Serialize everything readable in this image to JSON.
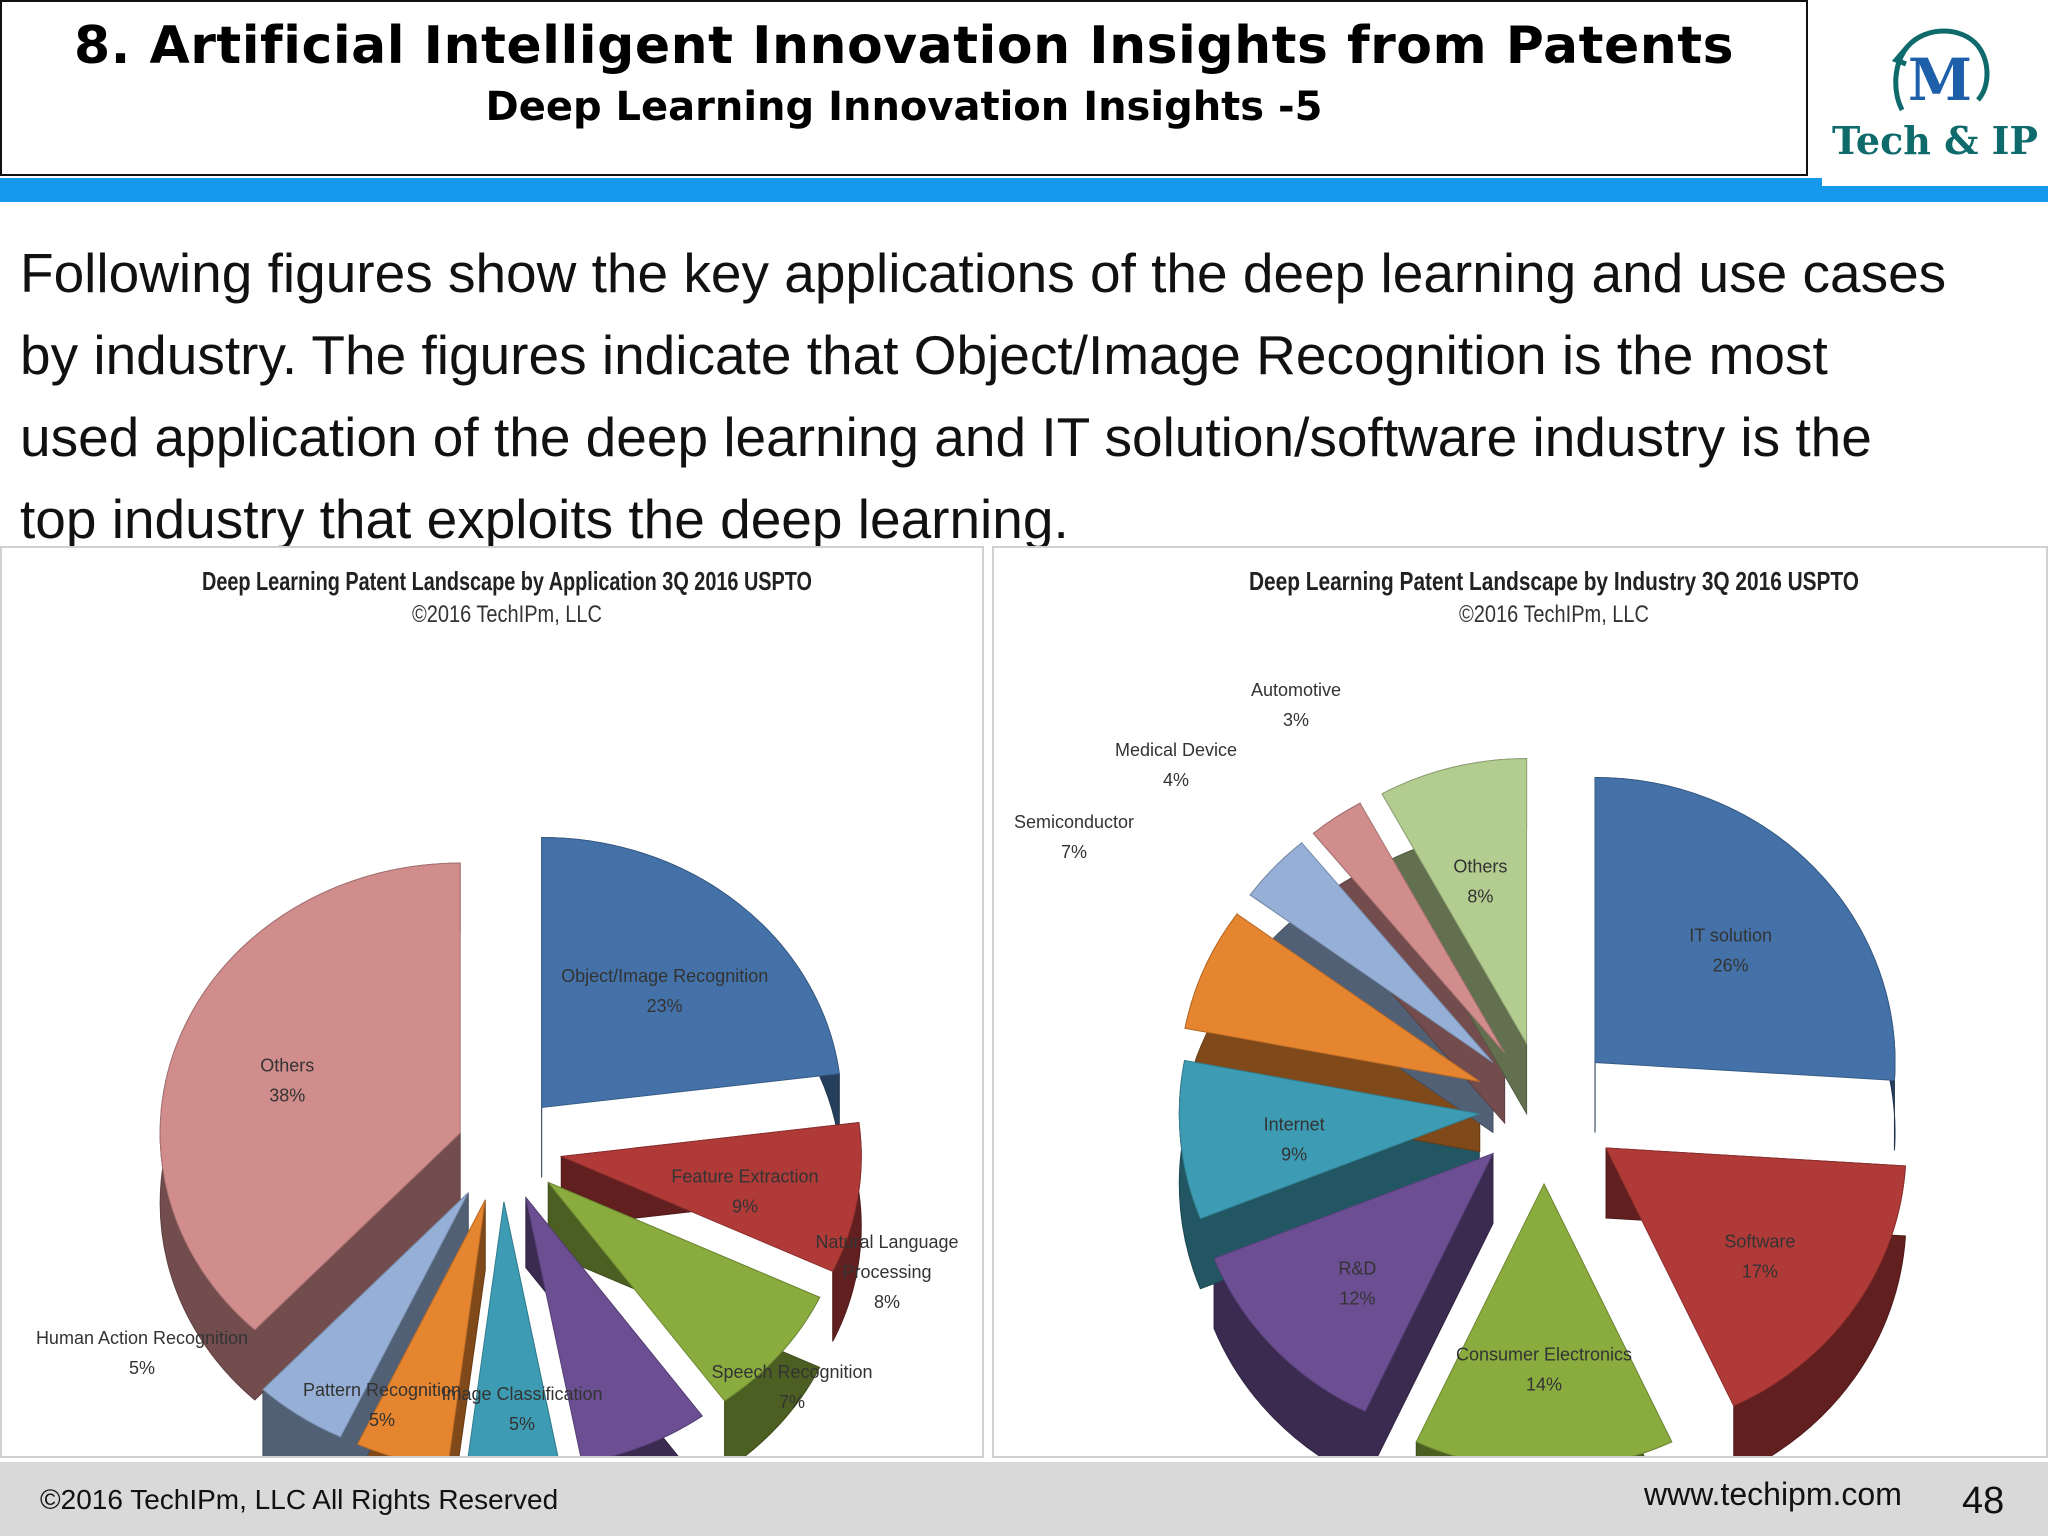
{
  "header": {
    "title": "8. Artificial Intelligent Innovation Insights from Patents",
    "subtitle": "Deep Learning Innovation Insights -5"
  },
  "logo": {
    "mark": "M",
    "text": "Tech & IP"
  },
  "intro": {
    "lines": [
      "Following figures show the key applications of the deep learning and use cases",
      "by industry. The figures indicate that Object/Image Recognition is the most",
      "used application of the deep learning and IT solution/software industry  is the",
      "top industry that exploits the deep learning."
    ]
  },
  "footer": {
    "copyright": "©2016 TechIPm, LLC All Rights Reserved",
    "url": "www.techipm.com",
    "page": "48"
  },
  "chart_data": [
    {
      "type": "pie",
      "title": "Deep Learning Patent Landscape by Application 3Q 2016 USPTO",
      "subtitle": "©2016 TechIPm, LLC",
      "slices": [
        {
          "label": "Object/Image Recognition",
          "value": 23,
          "text": "23%",
          "color": "#4472a8"
        },
        {
          "label": "Feature Extraction",
          "value": 9,
          "text": "9%",
          "color": "#b03a38"
        },
        {
          "label": "Natural Language Processing",
          "value": 8,
          "text": "8%",
          "color": "#8aac3f"
        },
        {
          "label": "Speech Recognition",
          "value": 7,
          "text": "7%",
          "color": "#6c4f93"
        },
        {
          "label": "Image Classification",
          "value": 5,
          "text": "5%",
          "color": "#3d9cb3"
        },
        {
          "label": "Pattern Recognition",
          "value": 5,
          "text": "5%",
          "color": "#e6852f"
        },
        {
          "label": "Human Action Recognition",
          "value": 5,
          "text": "5%",
          "color": "#95afd6"
        },
        {
          "label": "Others",
          "value": 38,
          "text": "38%",
          "color": "#d18c8c"
        }
      ]
    },
    {
      "type": "pie",
      "title": "Deep Learning Patent Landscape by Industry 3Q 2016 USPTO",
      "subtitle": "©2016 TechIPm, LLC",
      "slices": [
        {
          "label": "IT solution",
          "value": 26,
          "text": "26%",
          "color": "#4472a8"
        },
        {
          "label": "Software",
          "value": 17,
          "text": "17%",
          "color": "#b03a38"
        },
        {
          "label": "Consumer Electronics",
          "value": 14,
          "text": "14%",
          "color": "#8aac3f"
        },
        {
          "label": "R&D",
          "value": 12,
          "text": "12%",
          "color": "#6c4f93"
        },
        {
          "label": "Internet",
          "value": 9,
          "text": "9%",
          "color": "#3d9cb3"
        },
        {
          "label": "Semiconductor",
          "value": 7,
          "text": "7%",
          "color": "#e6852f"
        },
        {
          "label": "Medical Device",
          "value": 4,
          "text": "4%",
          "color": "#95afd6"
        },
        {
          "label": "Automotive",
          "value": 3,
          "text": "3%",
          "color": "#d18c8c"
        },
        {
          "label": "Others",
          "value": 8,
          "text": "8%",
          "color": "#b3cc8f"
        }
      ]
    }
  ]
}
